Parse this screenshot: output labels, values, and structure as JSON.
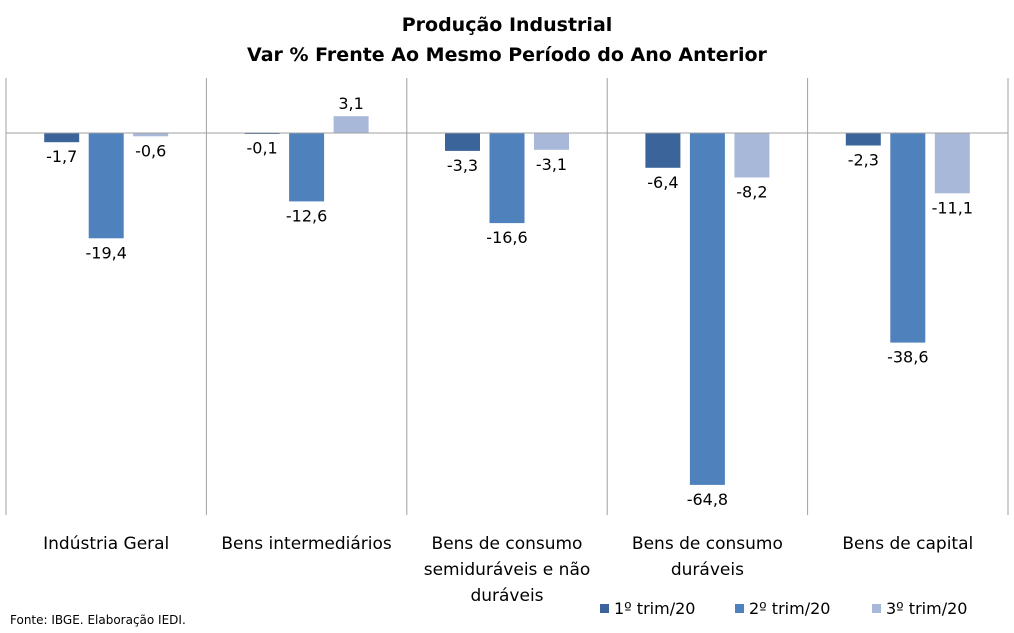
{
  "chart_data": {
    "type": "bar",
    "title": "Produção Industrial",
    "subtitle": "Var % Frente Ao Mesmo Período do Ano Anterior",
    "categories": [
      [
        "Indústria Geral"
      ],
      [
        "Bens intermediários"
      ],
      [
        "Bens de consumo",
        "semiduráveis e não",
        "duráveis"
      ],
      [
        "Bens de consumo",
        "duráveis"
      ],
      [
        "Bens de capital"
      ]
    ],
    "series": [
      {
        "name": "1º trim/20",
        "color": "#3b659a",
        "values": [
          -1.7,
          -0.1,
          -3.3,
          -6.4,
          -2.3
        ]
      },
      {
        "name": "2º trim/20",
        "color": "#4f81bd",
        "values": [
          -19.4,
          -12.6,
          -16.6,
          -64.8,
          -38.6
        ]
      },
      {
        "name": "3º trim/20",
        "color": "#a8b8d8",
        "values": [
          -0.6,
          3.1,
          -3.1,
          -8.2,
          -11.1
        ]
      }
    ],
    "ylim": [
      -70,
      10
    ],
    "grid": false,
    "legend": "bottom-right",
    "decimal_separator": ","
  },
  "source_note": "Fonte: IBGE. Elaboração IEDI."
}
